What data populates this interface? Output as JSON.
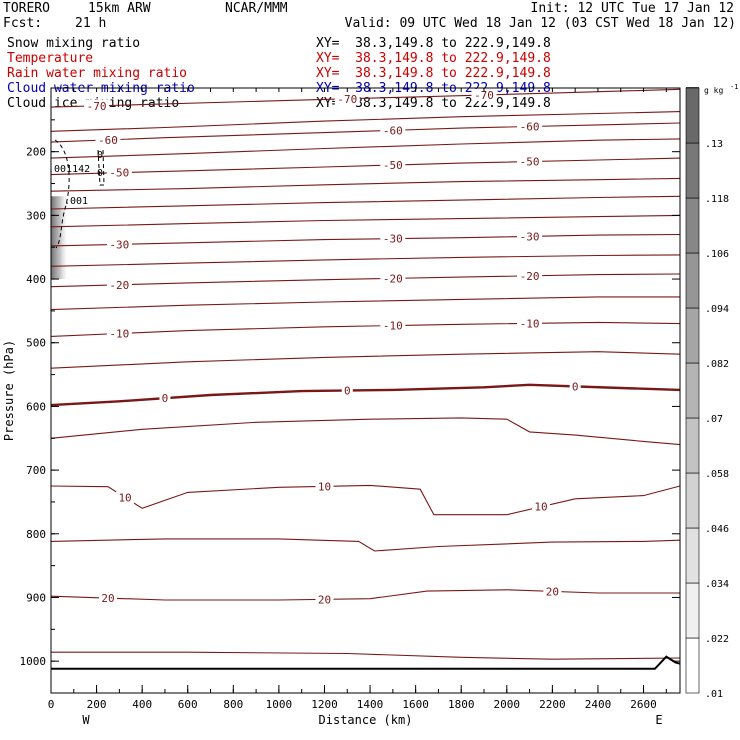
{
  "header": {
    "model": "TORERO",
    "resolution": "15km ARW",
    "org": "NCAR/MMM",
    "init": "Init: 12 UTC Tue 17 Jan 12",
    "fcst_label": "Fcst:",
    "fcst_value": "21 h",
    "valid": "Valid: 09 UTC Wed 18 Jan 12 (03 CST Wed 18 Jan 12)"
  },
  "legend_fields": [
    {
      "name": "Snow mixing ratio",
      "xy": "XY=  38.3,149.8 to 222.9,149.8",
      "color": "#000000"
    },
    {
      "name": "Temperature",
      "xy": "XY=  38.3,149.8 to 222.9,149.8",
      "color": "#cc0000"
    },
    {
      "name": "Rain water mixing ratio",
      "xy": "XY=  38.3,149.8 to 222.9,149.8",
      "color": "#cc0000"
    },
    {
      "name": "Cloud water mixing ratio",
      "xy": "XY=  38.3,149.8 to 222.9,149.8",
      "color": "#0000bb"
    },
    {
      "name": "Cloud ice mixing ratio",
      "xy": "XY=  38.3,149.8 to 222.9,149.8",
      "color": "#000000"
    }
  ],
  "colorbar": {
    "unit": "g kg",
    "unit_exp": "-1",
    "levels": [
      ".01",
      ".022",
      ".034",
      ".046",
      ".058",
      ".07",
      ".082",
      ".094",
      ".106",
      ".118",
      ".13"
    ]
  },
  "chart_data": {
    "type": "contour-cross-section",
    "xlabel": "Distance (km)",
    "ylabel": "Pressure (hPa)",
    "xlim": [
      0,
      2760
    ],
    "ylim": [
      1050,
      100
    ],
    "x_ticks": [
      0,
      200,
      400,
      600,
      800,
      1000,
      1200,
      1400,
      1600,
      1800,
      2000,
      2200,
      2400,
      2600
    ],
    "y_ticks": [
      200,
      300,
      400,
      500,
      600,
      700,
      800,
      900,
      1000
    ],
    "x_tick_labels": [
      "0",
      "200",
      "400",
      "600",
      "800",
      "1000",
      "1200",
      "1400",
      "1600",
      "1800",
      "2000",
      "2200",
      "2400",
      "2600"
    ],
    "y_tick_labels": [
      "200",
      "300",
      "400",
      "500",
      "600",
      "700",
      "800",
      "900",
      "1000"
    ],
    "west_label": "W",
    "east_label": "E",
    "temperature_contours_C": [
      {
        "value": -70,
        "label": "-70",
        "pts": [
          [
            0,
            130
          ],
          [
            400,
            126
          ],
          [
            1000,
            120
          ],
          [
            1600,
            114
          ],
          [
            2200,
            108
          ],
          [
            2760,
            102
          ]
        ]
      },
      {
        "value": -65,
        "label": "",
        "pts": [
          [
            0,
            168
          ],
          [
            500,
            162
          ],
          [
            1200,
            152
          ],
          [
            1800,
            145
          ],
          [
            2400,
            140
          ],
          [
            2760,
            137
          ]
        ]
      },
      {
        "value": -60,
        "label": "-60",
        "pts": [
          [
            0,
            185
          ],
          [
            500,
            178
          ],
          [
            1200,
            170
          ],
          [
            1800,
            163
          ],
          [
            2400,
            158
          ],
          [
            2760,
            155
          ]
        ]
      },
      {
        "value": -55,
        "label": "",
        "pts": [
          [
            0,
            210
          ],
          [
            600,
            203
          ],
          [
            1200,
            195
          ],
          [
            1800,
            188
          ],
          [
            2400,
            182
          ],
          [
            2760,
            180
          ]
        ]
      },
      {
        "value": -50,
        "label": "-50",
        "pts": [
          [
            0,
            236
          ],
          [
            600,
            230
          ],
          [
            1200,
            224
          ],
          [
            1800,
            218
          ],
          [
            2400,
            213
          ],
          [
            2760,
            210
          ]
        ]
      },
      {
        "value": -45,
        "label": "",
        "pts": [
          [
            0,
            262
          ],
          [
            600,
            258
          ],
          [
            1200,
            252
          ],
          [
            1800,
            247
          ],
          [
            2400,
            244
          ],
          [
            2760,
            242
          ]
        ]
      },
      {
        "value": -40,
        "label": "",
        "pts": [
          [
            0,
            290
          ],
          [
            600,
            285
          ],
          [
            1200,
            280
          ],
          [
            1800,
            276
          ],
          [
            2400,
            272
          ],
          [
            2760,
            270
          ]
        ]
      },
      {
        "value": -35,
        "label": "",
        "pts": [
          [
            0,
            318
          ],
          [
            600,
            313
          ],
          [
            1200,
            308
          ],
          [
            1800,
            305
          ],
          [
            2400,
            302
          ],
          [
            2760,
            300
          ]
        ]
      },
      {
        "value": -30,
        "label": "-30",
        "pts": [
          [
            0,
            348
          ],
          [
            600,
            343
          ],
          [
            1200,
            338
          ],
          [
            1800,
            335
          ],
          [
            2400,
            331
          ],
          [
            2760,
            330
          ]
        ]
      },
      {
        "value": -25,
        "label": "",
        "pts": [
          [
            0,
            380
          ],
          [
            600,
            375
          ],
          [
            1200,
            370
          ],
          [
            1800,
            366
          ],
          [
            2400,
            363
          ],
          [
            2760,
            362
          ]
        ]
      },
      {
        "value": -20,
        "label": "-20",
        "pts": [
          [
            0,
            412
          ],
          [
            600,
            406
          ],
          [
            1200,
            401
          ],
          [
            1800,
            397
          ],
          [
            2400,
            393
          ],
          [
            2760,
            392
          ]
        ]
      },
      {
        "value": -15,
        "label": "",
        "pts": [
          [
            0,
            448
          ],
          [
            600,
            441
          ],
          [
            1200,
            436
          ],
          [
            1800,
            432
          ],
          [
            2400,
            428
          ],
          [
            2760,
            428
          ]
        ]
      },
      {
        "value": -10,
        "label": "-10",
        "pts": [
          [
            0,
            490
          ],
          [
            600,
            481
          ],
          [
            1200,
            475
          ],
          [
            1800,
            471
          ],
          [
            2400,
            468
          ],
          [
            2760,
            470
          ]
        ]
      },
      {
        "value": -5,
        "label": "",
        "pts": [
          [
            0,
            540
          ],
          [
            600,
            530
          ],
          [
            1200,
            523
          ],
          [
            1800,
            518
          ],
          [
            2400,
            514
          ],
          [
            2760,
            518
          ]
        ]
      },
      {
        "value": 0,
        "label": "0",
        "pts": [
          [
            0,
            598
          ],
          [
            300,
            592
          ],
          [
            700,
            582
          ],
          [
            1100,
            576
          ],
          [
            1500,
            574
          ],
          [
            1900,
            570
          ],
          [
            2100,
            566
          ],
          [
            2500,
            571
          ],
          [
            2760,
            574
          ]
        ]
      },
      {
        "value": 5,
        "label": "",
        "pts": [
          [
            0,
            650
          ],
          [
            400,
            636
          ],
          [
            900,
            625
          ],
          [
            1400,
            620
          ],
          [
            1800,
            618
          ],
          [
            2000,
            620
          ],
          [
            2100,
            640
          ],
          [
            2300,
            645
          ],
          [
            2600,
            655
          ],
          [
            2760,
            660
          ]
        ]
      },
      {
        "value": 10,
        "label": "10",
        "pts": [
          [
            0,
            725
          ],
          [
            250,
            726
          ],
          [
            400,
            760
          ],
          [
            600,
            735
          ],
          [
            1000,
            727
          ],
          [
            1400,
            724
          ],
          [
            1620,
            730
          ],
          [
            1680,
            770
          ],
          [
            2000,
            770
          ],
          [
            2300,
            745
          ],
          [
            2600,
            740
          ],
          [
            2760,
            725
          ]
        ]
      },
      {
        "value": 15,
        "label": "",
        "pts": [
          [
            0,
            812
          ],
          [
            500,
            808
          ],
          [
            1000,
            808
          ],
          [
            1350,
            812
          ],
          [
            1420,
            827
          ],
          [
            1700,
            820
          ],
          [
            2200,
            813
          ],
          [
            2600,
            812
          ],
          [
            2760,
            810
          ]
        ]
      },
      {
        "value": 20,
        "label": "20",
        "pts": [
          [
            0,
            898
          ],
          [
            500,
            904
          ],
          [
            1000,
            904
          ],
          [
            1400,
            902
          ],
          [
            1650,
            890
          ],
          [
            2000,
            888
          ],
          [
            2400,
            893
          ],
          [
            2760,
            893
          ]
        ]
      },
      {
        "value": 25,
        "label": "",
        "pts": [
          [
            0,
            986
          ],
          [
            600,
            986
          ],
          [
            1300,
            988
          ],
          [
            1800,
            994
          ],
          [
            2200,
            997
          ],
          [
            2760,
            995
          ]
        ]
      }
    ],
    "terrain": [
      [
        0,
        1012
      ],
      [
        2650,
        1012
      ],
      [
        2700,
        993
      ],
      [
        2740,
        1002
      ],
      [
        2760,
        1004
      ]
    ],
    "cloud_ice_labels": [
      ".001",
      ".001142",
      "0",
      "0"
    ]
  }
}
